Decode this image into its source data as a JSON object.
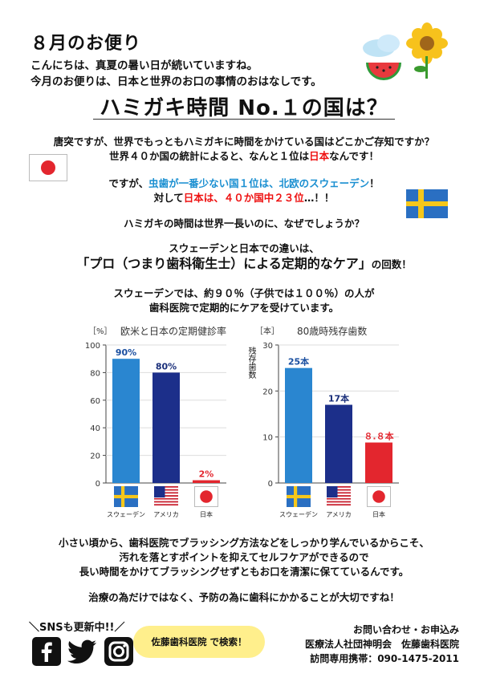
{
  "header": {
    "title": "８月のお便り",
    "greeting_1": "こんにちは、真夏の暑い日が続いていますね。",
    "greeting_2": "今月のお便りは、日本と世界のお口の事情のおはなしです。"
  },
  "headline": "ハミガキ時間 No.１の国は？",
  "intro": {
    "line1": "唐突ですが、世界でもっともハミガキに時間をかけている国はどこかご存知ですか？",
    "line2_prefix": "世界４０か国の統計によると、なんと１位は",
    "line2_highlight": "日本",
    "line2_suffix": "なんです！",
    "line3_prefix": "ですが、",
    "line3_highlight": "虫歯が一番少ない国１位は、北欧のスウェーデン",
    "line3_suffix": "！",
    "line4_prefix": "対して",
    "line4_highlight": "日本は、４０か国中２３位",
    "line4_suffix": "…！！",
    "line5": "ハミガキの時間は世界一長いのに、なぜでしょうか？",
    "line6": "スウェーデンと日本での違いは、",
    "line7_main": "「プロ（つまり歯科衛生士）による定期的なケア」",
    "line7_suffix": "の回数！",
    "line8": "スウェーデンでは、約９０％（子供では１００％）の人が",
    "line9": "歯科医院で定期的にケアを受けています。"
  },
  "chart_data": [
    {
      "type": "bar",
      "title": "欧米と日本の定期健診率",
      "unit": "［%］",
      "categories": [
        "スウェーデン",
        "アメリカ",
        "日本"
      ],
      "values": [
        90,
        80,
        2
      ],
      "value_labels": [
        "90%",
        "80%",
        "2%"
      ],
      "ylim": [
        0,
        100
      ],
      "yticks": [
        0,
        20,
        40,
        60,
        80,
        100
      ],
      "colors": [
        "#2a86d0",
        "#1c2f8a",
        "#e3262e"
      ],
      "label_colors": [
        "#1a4fa0",
        "#1a2f7a",
        "#e3262e"
      ]
    },
    {
      "type": "bar",
      "title": "80歳時残存歯数",
      "unit": "［本］",
      "ylabel": "残存歯数",
      "categories": [
        "スウェーデン",
        "アメリカ",
        "日本"
      ],
      "values": [
        25,
        17,
        8.8
      ],
      "value_labels": [
        "25本",
        "17本",
        "８.８本"
      ],
      "ylim": [
        0,
        30
      ],
      "yticks": [
        0,
        10,
        20,
        30
      ],
      "colors": [
        "#2a86d0",
        "#1c2f8a",
        "#e3262e"
      ],
      "label_colors": [
        "#1a4fa0",
        "#1a2f7a",
        "#e3262e"
      ]
    }
  ],
  "flags": {
    "sweden": "スウェーデン",
    "usa": "アメリカ",
    "japan": "日本"
  },
  "closing": {
    "line1": "小さい頃から、歯科医院でブラッシング方法などをしっかり学んでいるからこそ、",
    "line2": "汚れを落とすポイントを抑えてセルフケアができるので",
    "line3": "長い時間をかけてブラッシングせずともお口を清潔に保てているんです。",
    "line4": "治療の為だけではなく、予防の為に歯科にかかることが大切ですね！"
  },
  "sns": {
    "heading": "＼SNSも更新中!!／",
    "search": "佐藤歯科医院 で検索！",
    "icons": [
      "facebook-icon",
      "twitter-icon",
      "instagram-icon"
    ]
  },
  "contact": {
    "line1": "お問い合わせ・お申込み",
    "line2": "医療法人社団神明会　佐藤歯科医院",
    "line3": "訪問専用携帯：090-1475-2011"
  },
  "colors": {
    "sweden_blue": "#2a86d0",
    "usa_navy": "#1c2f8a",
    "japan_red": "#e3262e",
    "highlight_blue": "#1a8fd1",
    "bubble_yellow": "#ffef8c"
  }
}
